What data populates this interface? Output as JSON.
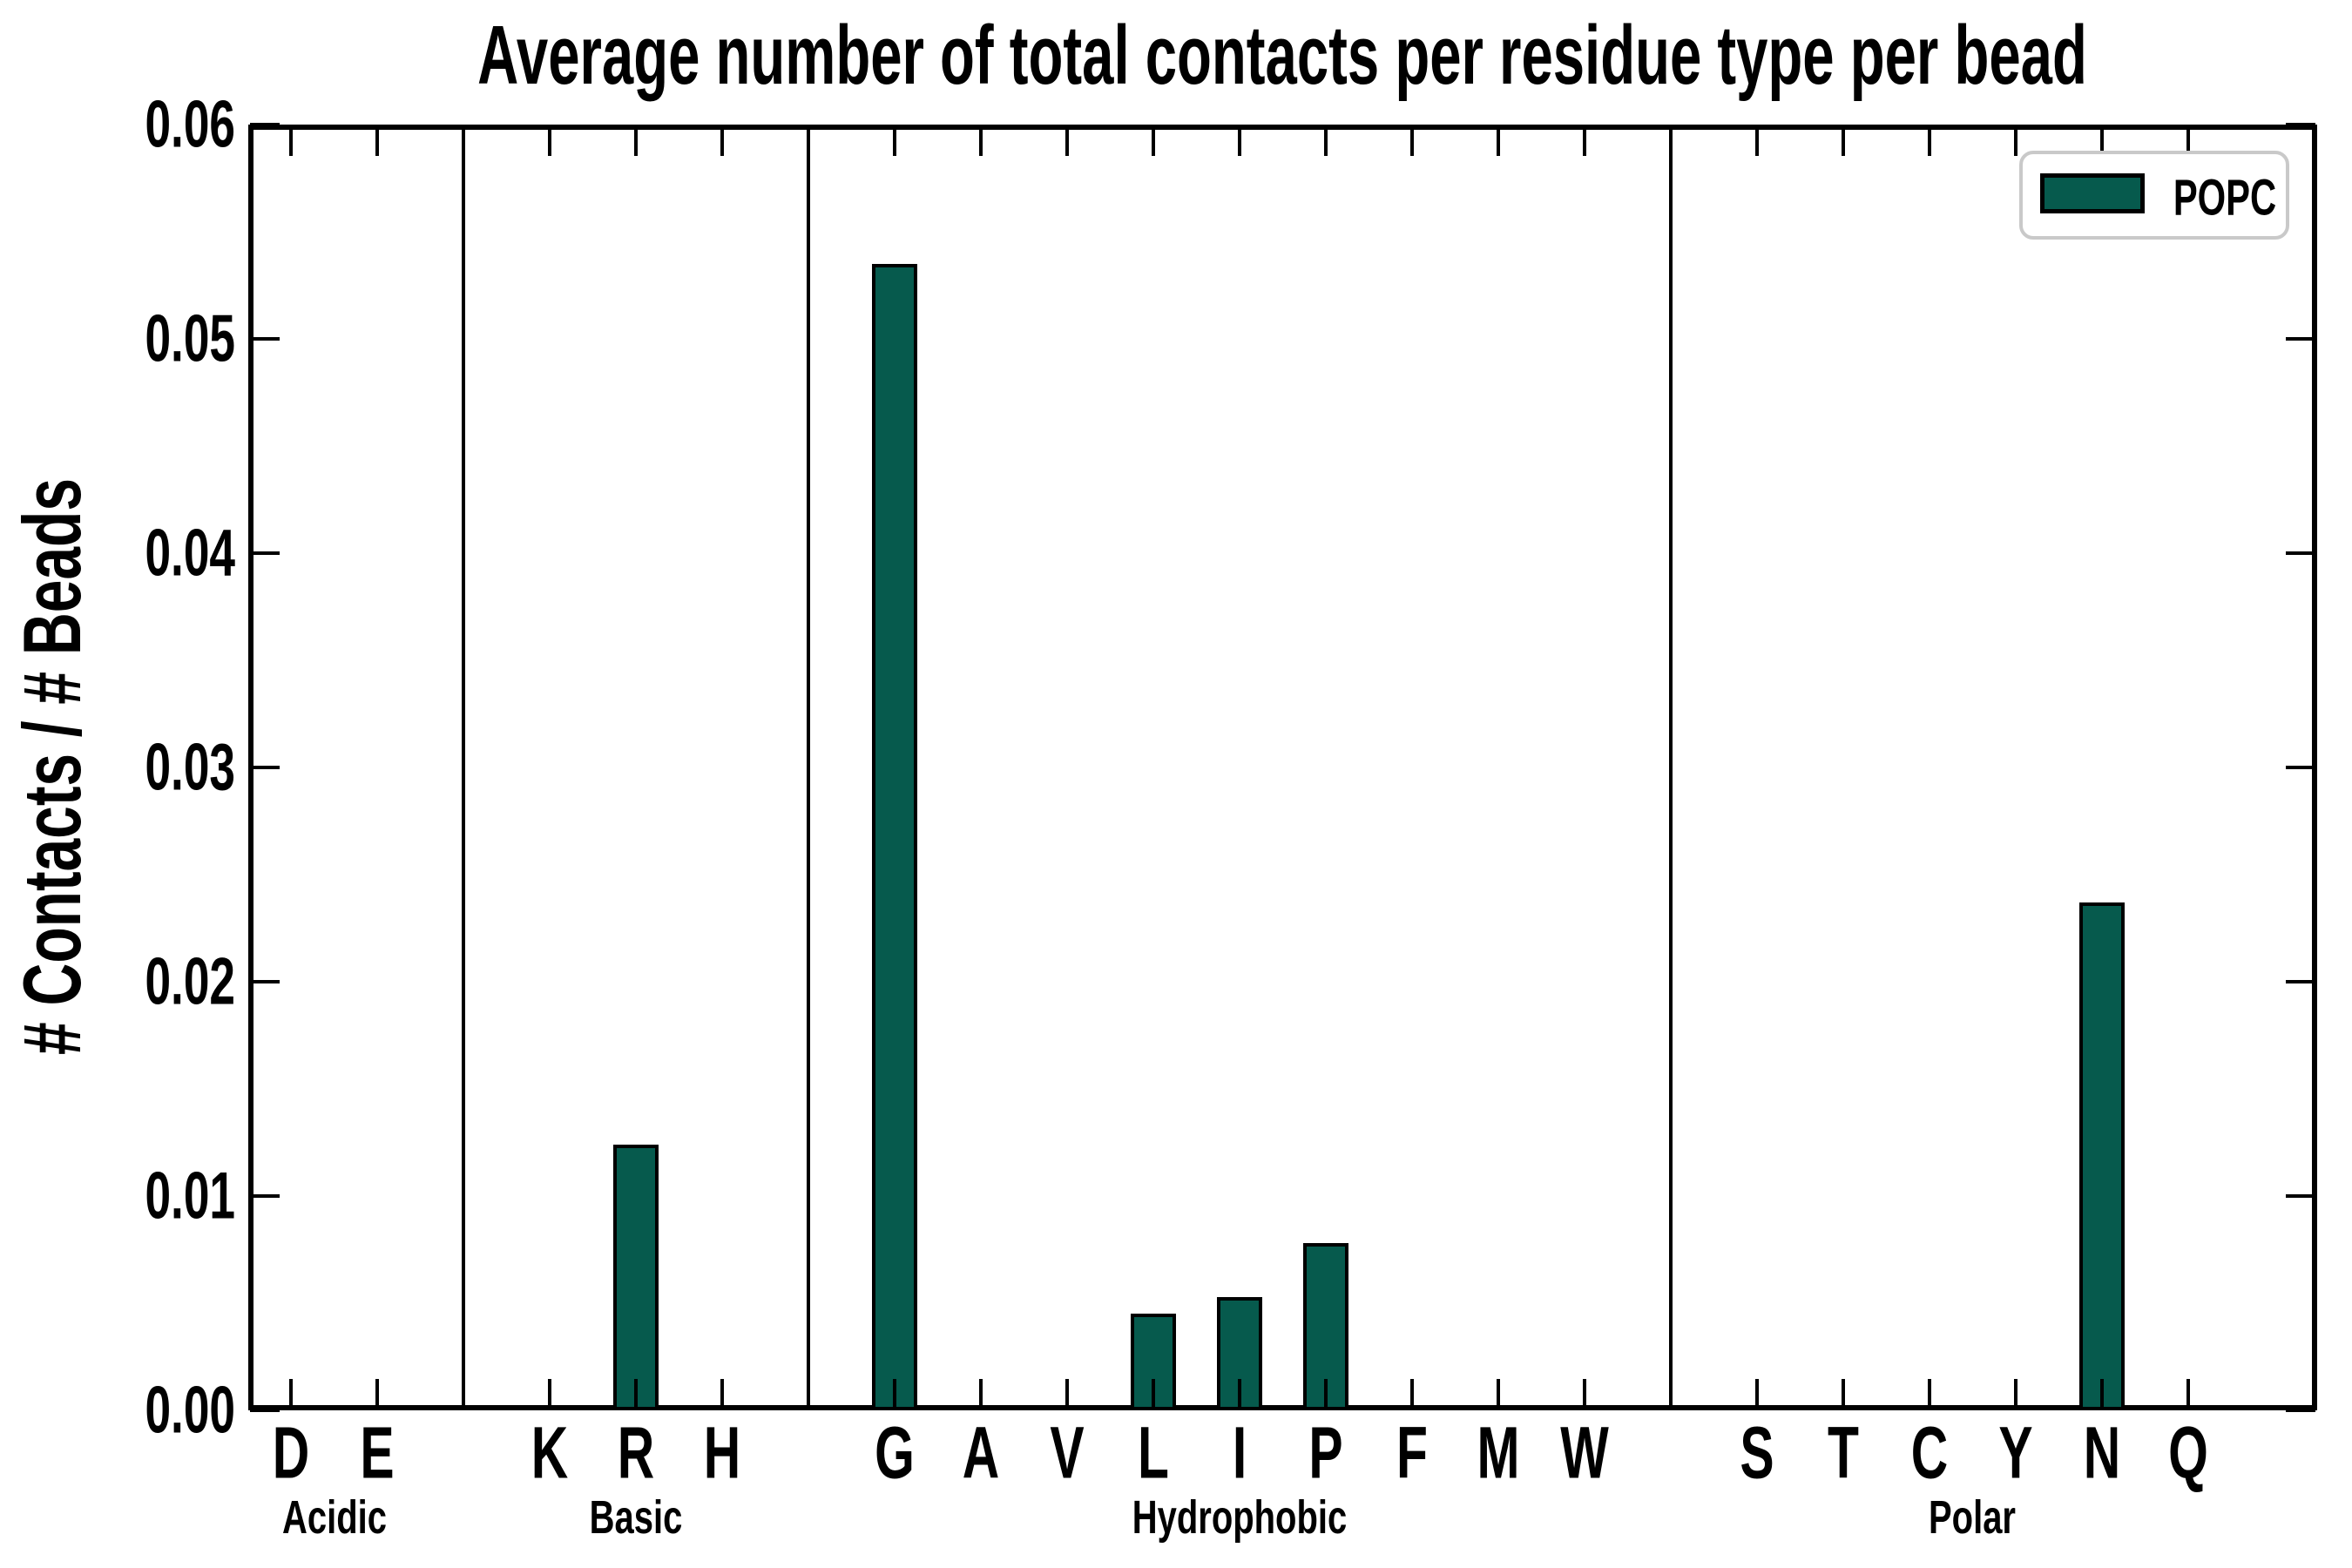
{
  "figure": {
    "title": "Average number of total contacts per residue type per bead",
    "ylabel": "# Contacts / # Beads"
  },
  "colors": {
    "bar_fill": "#065A4D",
    "bar_edge": "#000000",
    "axis": "#000000",
    "legend_border": "#c9c9c9",
    "background": "#ffffff"
  },
  "legend": {
    "label": "POPC",
    "position": "upper right"
  },
  "chart_data": {
    "type": "bar",
    "title": "Average number of total contacts per residue type per bead",
    "xlabel": "",
    "ylabel": "# Contacts / # Beads",
    "ylim": [
      0,
      0.06
    ],
    "ytick_labels": [
      "0.00",
      "0.01",
      "0.02",
      "0.03",
      "0.04",
      "0.05",
      "0.06"
    ],
    "grid": false,
    "legend": [
      "POPC"
    ],
    "legend_position": "upper right",
    "series_name": "POPC",
    "groups": [
      {
        "label": "Acidic",
        "categories": [
          "D",
          "E"
        ],
        "values": [
          0,
          0
        ]
      },
      {
        "label": "Basic",
        "categories": [
          "K",
          "R",
          "H"
        ],
        "values": [
          0,
          0.0124,
          0
        ]
      },
      {
        "label": "Hydrophobic",
        "categories": [
          "G",
          "A",
          "V",
          "L",
          "I",
          "P",
          "F",
          "M",
          "W"
        ],
        "values": [
          0.0535,
          0,
          0,
          0.0045,
          0.0053,
          0.0078,
          0,
          0,
          0
        ]
      },
      {
        "label": "Polar",
        "categories": [
          "S",
          "T",
          "C",
          "Y",
          "N",
          "Q"
        ],
        "values": [
          0,
          0,
          0,
          0,
          0.0237,
          0
        ]
      }
    ]
  }
}
